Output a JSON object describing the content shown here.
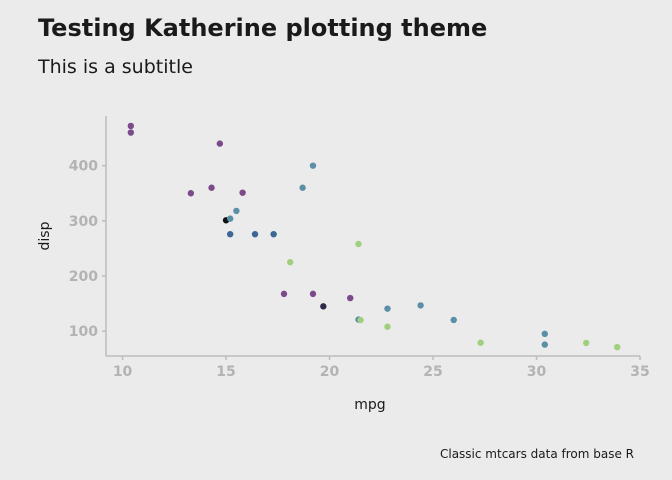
{
  "title": "Testing Katherine plotting theme",
  "subtitle": "This is a subtitle",
  "caption": "Classic mtcars data from base R",
  "chart_data": {
    "type": "scatter",
    "xlabel": "mpg",
    "ylabel": "disp",
    "xlim": [
      9.2,
      35.0
    ],
    "ylim": [
      55,
      490
    ],
    "x_ticks": [
      10,
      15,
      20,
      25,
      30,
      35
    ],
    "y_ticks": [
      100,
      200,
      300,
      400
    ],
    "grid": false,
    "legend": "none",
    "points": [
      {
        "x": 10.4,
        "y": 472,
        "color": "#7b4a8a"
      },
      {
        "x": 10.4,
        "y": 460,
        "color": "#7b4a8a"
      },
      {
        "x": 14.7,
        "y": 440,
        "color": "#7b4a8a"
      },
      {
        "x": 13.3,
        "y": 350,
        "color": "#7b4a8a"
      },
      {
        "x": 14.3,
        "y": 360,
        "color": "#7b4a8a"
      },
      {
        "x": 15.8,
        "y": 351,
        "color": "#7b4a8a"
      },
      {
        "x": 17.8,
        "y": 167.6,
        "color": "#7b4a8a"
      },
      {
        "x": 19.2,
        "y": 167.6,
        "color": "#7b4a8a"
      },
      {
        "x": 21.0,
        "y": 160,
        "color": "#7b4a8a"
      },
      {
        "x": 19.7,
        "y": 145,
        "color": "#2e2a48"
      },
      {
        "x": 15.0,
        "y": 301,
        "color": "#111111"
      },
      {
        "x": 15.2,
        "y": 304,
        "color": "#5b8fa8"
      },
      {
        "x": 15.5,
        "y": 318,
        "color": "#5b8fa8"
      },
      {
        "x": 15.2,
        "y": 275.8,
        "color": "#3d6794"
      },
      {
        "x": 16.4,
        "y": 275.8,
        "color": "#3d6794"
      },
      {
        "x": 17.3,
        "y": 275.8,
        "color": "#3d6794"
      },
      {
        "x": 18.7,
        "y": 360,
        "color": "#5b8fa8"
      },
      {
        "x": 19.2,
        "y": 400,
        "color": "#5b8fa8"
      },
      {
        "x": 21.4,
        "y": 258,
        "color": "#9fd07e"
      },
      {
        "x": 18.1,
        "y": 225,
        "color": "#9fd07e"
      },
      {
        "x": 21.4,
        "y": 121,
        "color": "#5b8fa8"
      },
      {
        "x": 21.5,
        "y": 120.1,
        "color": "#9fd07e"
      },
      {
        "x": 22.8,
        "y": 140.8,
        "color": "#5b8fa8"
      },
      {
        "x": 24.4,
        "y": 146.7,
        "color": "#5b8fa8"
      },
      {
        "x": 22.8,
        "y": 108,
        "color": "#9fd07e"
      },
      {
        "x": 26.0,
        "y": 120.3,
        "color": "#5b8fa8"
      },
      {
        "x": 27.3,
        "y": 79,
        "color": "#9fd07e"
      },
      {
        "x": 30.4,
        "y": 95.1,
        "color": "#5b8fa8"
      },
      {
        "x": 30.4,
        "y": 75.7,
        "color": "#5b8fa8"
      },
      {
        "x": 32.4,
        "y": 78.7,
        "color": "#9fd07e"
      },
      {
        "x": 33.9,
        "y": 71.1,
        "color": "#9fd07e"
      }
    ]
  }
}
